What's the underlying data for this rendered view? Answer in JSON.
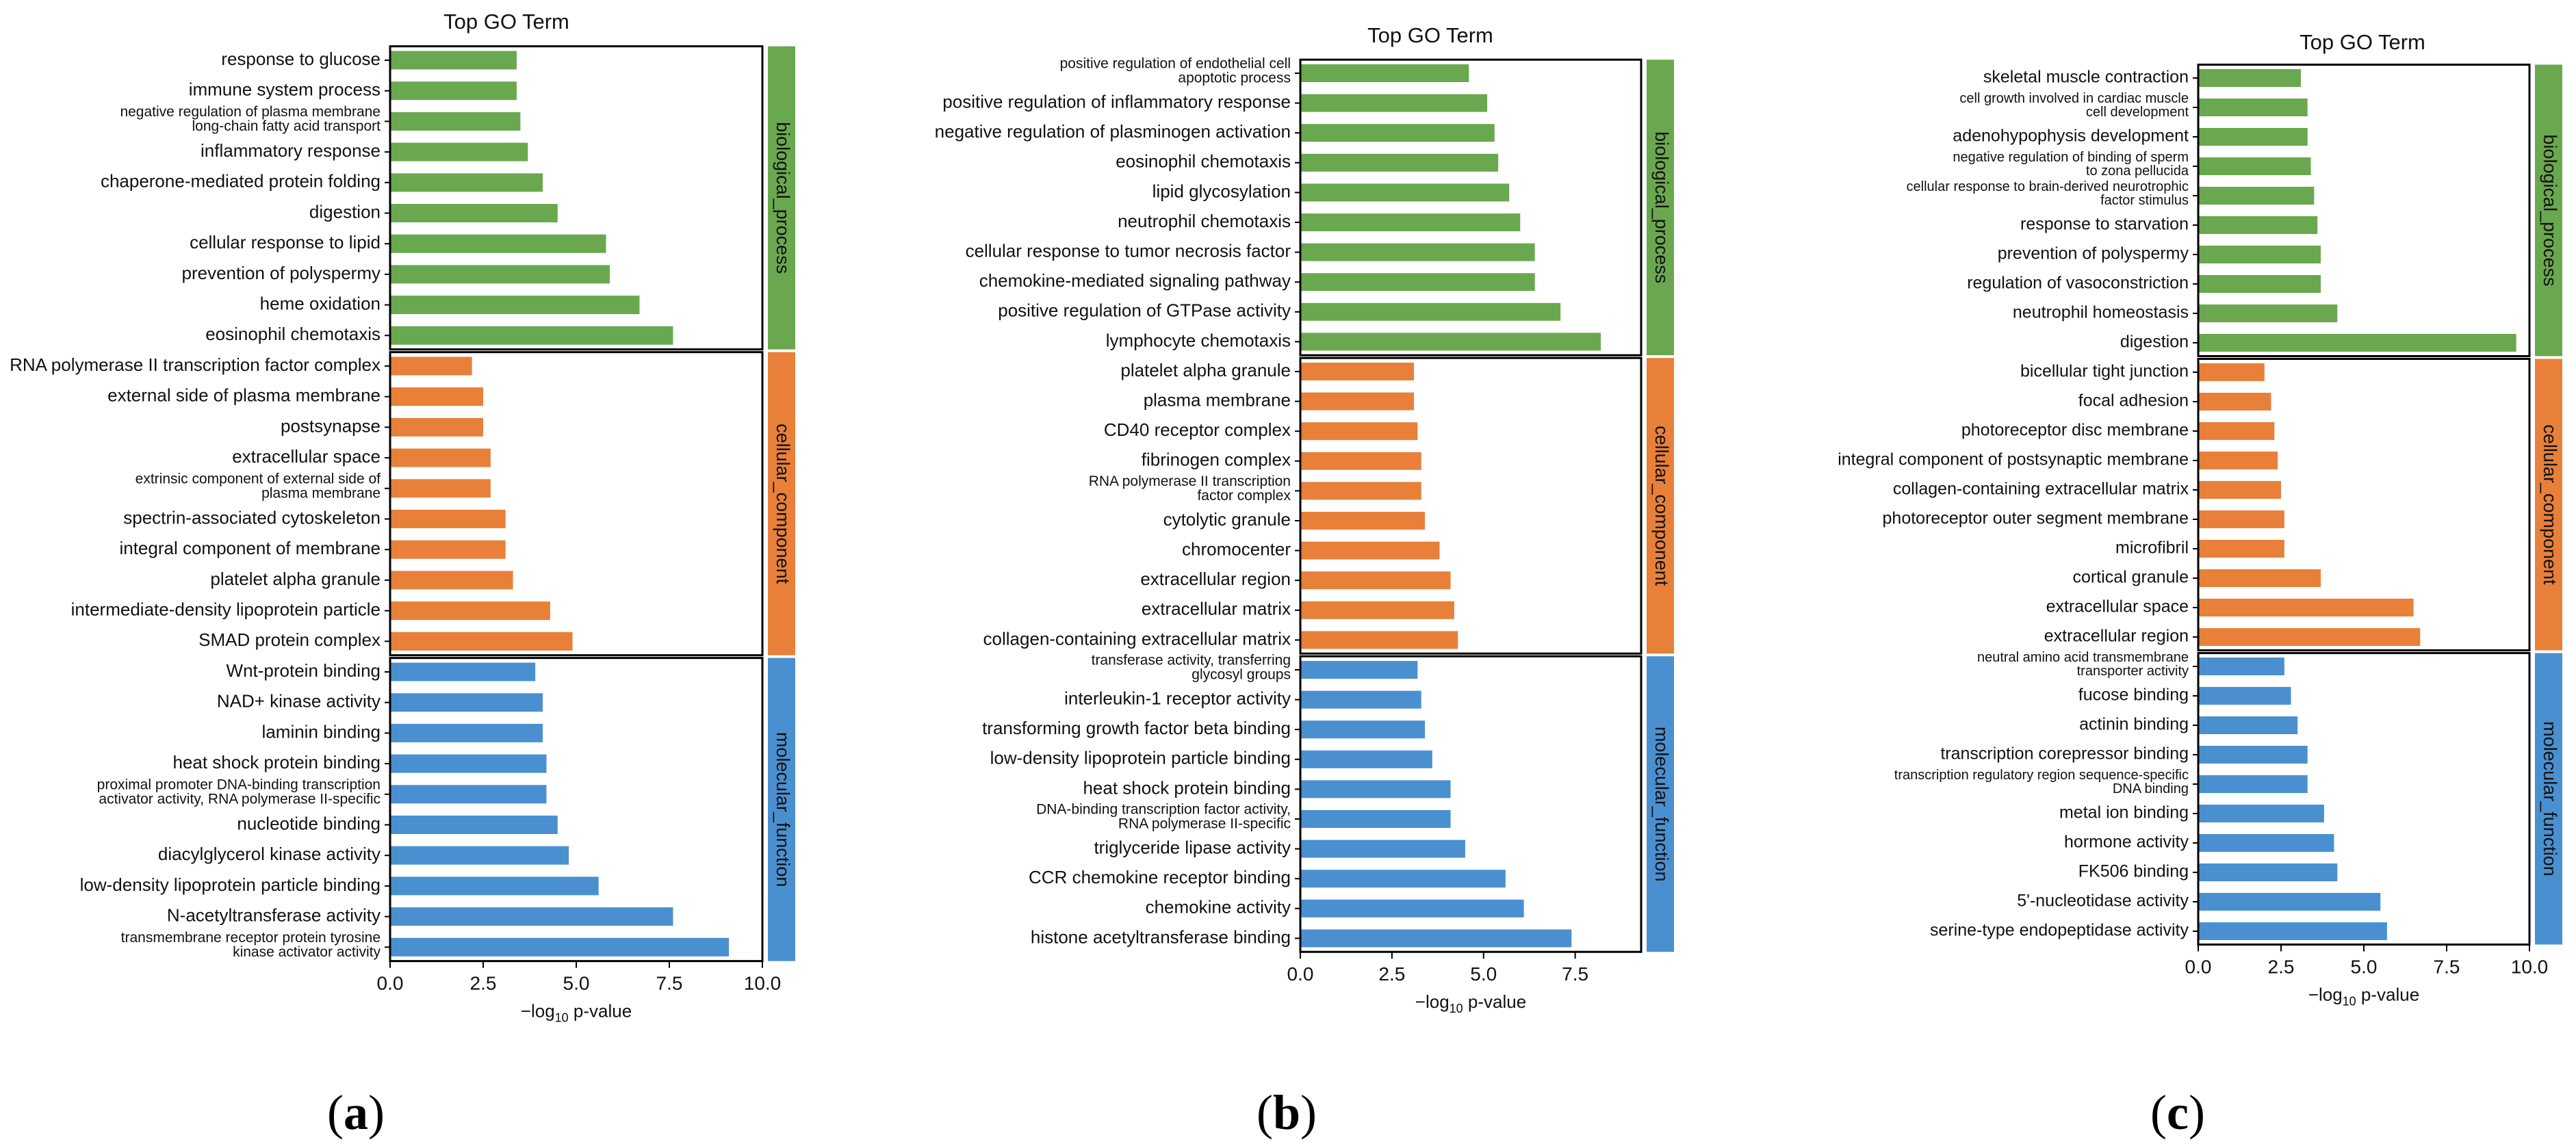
{
  "colors": {
    "biological_process": "#6aa84f",
    "cellular_component": "#e8803a",
    "molecular_function": "#4a90d0",
    "frame": "#000000"
  },
  "chart_data": [
    {
      "panel": "a",
      "type": "bar",
      "orientation": "horizontal",
      "title": "Top GO Term",
      "xlabel": "−log10 p-value",
      "xlim": [
        0,
        10
      ],
      "xticks": [
        "0.0",
        "2.5",
        "5.0",
        "7.5",
        "10.0"
      ],
      "groups": [
        {
          "name": "biological_process",
          "terms": [
            {
              "label": "response to glucose",
              "value": 3.4
            },
            {
              "label": "immune system process",
              "value": 3.4
            },
            {
              "label": "negative regulation of plasma membrane\nlong-chain fatty acid transport",
              "value": 3.5
            },
            {
              "label": "inflammatory response",
              "value": 3.7
            },
            {
              "label": "chaperone-mediated protein folding",
              "value": 4.1
            },
            {
              "label": "digestion",
              "value": 4.5
            },
            {
              "label": "cellular response to lipid",
              "value": 5.8
            },
            {
              "label": "prevention of polyspermy",
              "value": 5.9
            },
            {
              "label": "heme oxidation",
              "value": 6.7
            },
            {
              "label": "eosinophil chemotaxis",
              "value": 7.6
            }
          ]
        },
        {
          "name": "cellular_component",
          "terms": [
            {
              "label": "RNA polymerase II transcription factor complex",
              "value": 2.2
            },
            {
              "label": "external side of plasma membrane",
              "value": 2.5
            },
            {
              "label": "postsynapse",
              "value": 2.5
            },
            {
              "label": "extracellular space",
              "value": 2.7
            },
            {
              "label": "extrinsic component of external side of\nplasma membrane",
              "value": 2.7
            },
            {
              "label": "spectrin-associated cytoskeleton",
              "value": 3.1
            },
            {
              "label": "integral component of membrane",
              "value": 3.1
            },
            {
              "label": "platelet alpha granule",
              "value": 3.3
            },
            {
              "label": "intermediate-density lipoprotein particle",
              "value": 4.3
            },
            {
              "label": "SMAD protein complex",
              "value": 4.9
            }
          ]
        },
        {
          "name": "molecular_function",
          "terms": [
            {
              "label": "Wnt-protein binding",
              "value": 3.9
            },
            {
              "label": "NAD+ kinase activity",
              "value": 4.1
            },
            {
              "label": "laminin binding",
              "value": 4.1
            },
            {
              "label": "heat shock protein binding",
              "value": 4.2
            },
            {
              "label": "proximal promoter DNA-binding transcription\nactivator activity, RNA polymerase II-specific",
              "value": 4.2
            },
            {
              "label": "nucleotide binding",
              "value": 4.5
            },
            {
              "label": "diacylglycerol kinase activity",
              "value": 4.8
            },
            {
              "label": "low-density lipoprotein particle binding",
              "value": 5.6
            },
            {
              "label": "N-acetyltransferase activity",
              "value": 7.6
            },
            {
              "label": "transmembrane receptor protein tyrosine\nkinase activator activity",
              "value": 9.1
            }
          ]
        }
      ]
    },
    {
      "panel": "b",
      "type": "bar",
      "orientation": "horizontal",
      "title": "Top GO Term",
      "xlabel": "−log10 p-value",
      "xlim": [
        0,
        9.3
      ],
      "xticks": [
        "0.0",
        "2.5",
        "5.0",
        "7.5"
      ],
      "groups": [
        {
          "name": "biological_process",
          "terms": [
            {
              "label": "positive regulation of endothelial cell\napoptotic process",
              "value": 4.6
            },
            {
              "label": "positive regulation of inflammatory response",
              "value": 5.1
            },
            {
              "label": "negative regulation of plasminogen activation",
              "value": 5.3
            },
            {
              "label": "eosinophil chemotaxis",
              "value": 5.4
            },
            {
              "label": "lipid glycosylation",
              "value": 5.7
            },
            {
              "label": "neutrophil chemotaxis",
              "value": 6.0
            },
            {
              "label": "cellular response to tumor necrosis factor",
              "value": 6.4
            },
            {
              "label": "chemokine-mediated signaling pathway",
              "value": 6.4
            },
            {
              "label": "positive regulation of GTPase activity",
              "value": 7.1
            },
            {
              "label": "lymphocyte chemotaxis",
              "value": 8.2
            }
          ]
        },
        {
          "name": "cellular_component",
          "terms": [
            {
              "label": "platelet alpha granule",
              "value": 3.1
            },
            {
              "label": "plasma membrane",
              "value": 3.1
            },
            {
              "label": "CD40 receptor complex",
              "value": 3.2
            },
            {
              "label": "fibrinogen complex",
              "value": 3.3
            },
            {
              "label": "RNA polymerase II transcription\nfactor complex",
              "value": 3.3
            },
            {
              "label": "cytolytic granule",
              "value": 3.4
            },
            {
              "label": "chromocenter",
              "value": 3.8
            },
            {
              "label": "extracellular region",
              "value": 4.1
            },
            {
              "label": "extracellular matrix",
              "value": 4.2
            },
            {
              "label": "collagen-containing extracellular matrix",
              "value": 4.3
            }
          ]
        },
        {
          "name": "molecular_function",
          "terms": [
            {
              "label": "transferase activity, transferring\nglycosyl groups",
              "value": 3.2
            },
            {
              "label": "interleukin-1 receptor activity",
              "value": 3.3
            },
            {
              "label": "transforming growth factor beta binding",
              "value": 3.4
            },
            {
              "label": "low-density lipoprotein particle binding",
              "value": 3.6
            },
            {
              "label": "heat shock protein binding",
              "value": 4.1
            },
            {
              "label": "DNA-binding transcription factor activity,\nRNA polymerase II-specific",
              "value": 4.1
            },
            {
              "label": "triglyceride lipase activity",
              "value": 4.5
            },
            {
              "label": "CCR chemokine receptor binding",
              "value": 5.6
            },
            {
              "label": "chemokine activity",
              "value": 6.1
            },
            {
              "label": "histone acetyltransferase binding",
              "value": 7.4
            }
          ]
        }
      ]
    },
    {
      "panel": "c",
      "type": "bar",
      "orientation": "horizontal",
      "title": "Top GO Term",
      "xlabel": "−log10 p-value",
      "xlim": [
        0,
        10
      ],
      "xticks": [
        "0.0",
        "2.5",
        "5.0",
        "7.5",
        "10.0"
      ],
      "groups": [
        {
          "name": "biological_process",
          "terms": [
            {
              "label": "skeletal muscle contraction",
              "value": 3.1
            },
            {
              "label": "cell growth involved in cardiac muscle\ncell development",
              "value": 3.3
            },
            {
              "label": "adenohypophysis development",
              "value": 3.3
            },
            {
              "label": "negative regulation of binding of sperm\nto zona pellucida",
              "value": 3.4
            },
            {
              "label": "cellular response to brain-derived neurotrophic\nfactor stimulus",
              "value": 3.5
            },
            {
              "label": "response to starvation",
              "value": 3.6
            },
            {
              "label": "prevention of polyspermy",
              "value": 3.7
            },
            {
              "label": "regulation of vasoconstriction",
              "value": 3.7
            },
            {
              "label": "neutrophil homeostasis",
              "value": 4.2
            },
            {
              "label": "digestion",
              "value": 9.6
            }
          ]
        },
        {
          "name": "cellular_component",
          "terms": [
            {
              "label": "bicellular tight junction",
              "value": 2.0
            },
            {
              "label": "focal adhesion",
              "value": 2.2
            },
            {
              "label": "photoreceptor disc membrane",
              "value": 2.3
            },
            {
              "label": "integral component of postsynaptic membrane",
              "value": 2.4
            },
            {
              "label": "collagen-containing extracellular matrix",
              "value": 2.5
            },
            {
              "label": "photoreceptor outer segment membrane",
              "value": 2.6
            },
            {
              "label": "microfibril",
              "value": 2.6
            },
            {
              "label": "cortical granule",
              "value": 3.7
            },
            {
              "label": "extracellular space",
              "value": 6.5
            },
            {
              "label": "extracellular region",
              "value": 6.7
            }
          ]
        },
        {
          "name": "molecular_function",
          "terms": [
            {
              "label": "neutral amino acid transmembrane\ntransporter activity",
              "value": 2.6
            },
            {
              "label": "fucose binding",
              "value": 2.8
            },
            {
              "label": "actinin binding",
              "value": 3.0
            },
            {
              "label": "transcription corepressor binding",
              "value": 3.3
            },
            {
              "label": "transcription regulatory region sequence-specific\nDNA binding",
              "value": 3.3
            },
            {
              "label": "metal ion binding",
              "value": 3.8
            },
            {
              "label": "hormone activity",
              "value": 4.1
            },
            {
              "label": "FK506 binding",
              "value": 4.2
            },
            {
              "label": "5'-nucleotidase activity",
              "value": 5.5
            },
            {
              "label": "serine-type endopeptidase activity",
              "value": 5.7
            }
          ]
        }
      ]
    }
  ],
  "panel_labels": [
    "(a)",
    "(b)",
    "(c)"
  ],
  "panel_label_letters": [
    "a",
    "b",
    "c"
  ]
}
